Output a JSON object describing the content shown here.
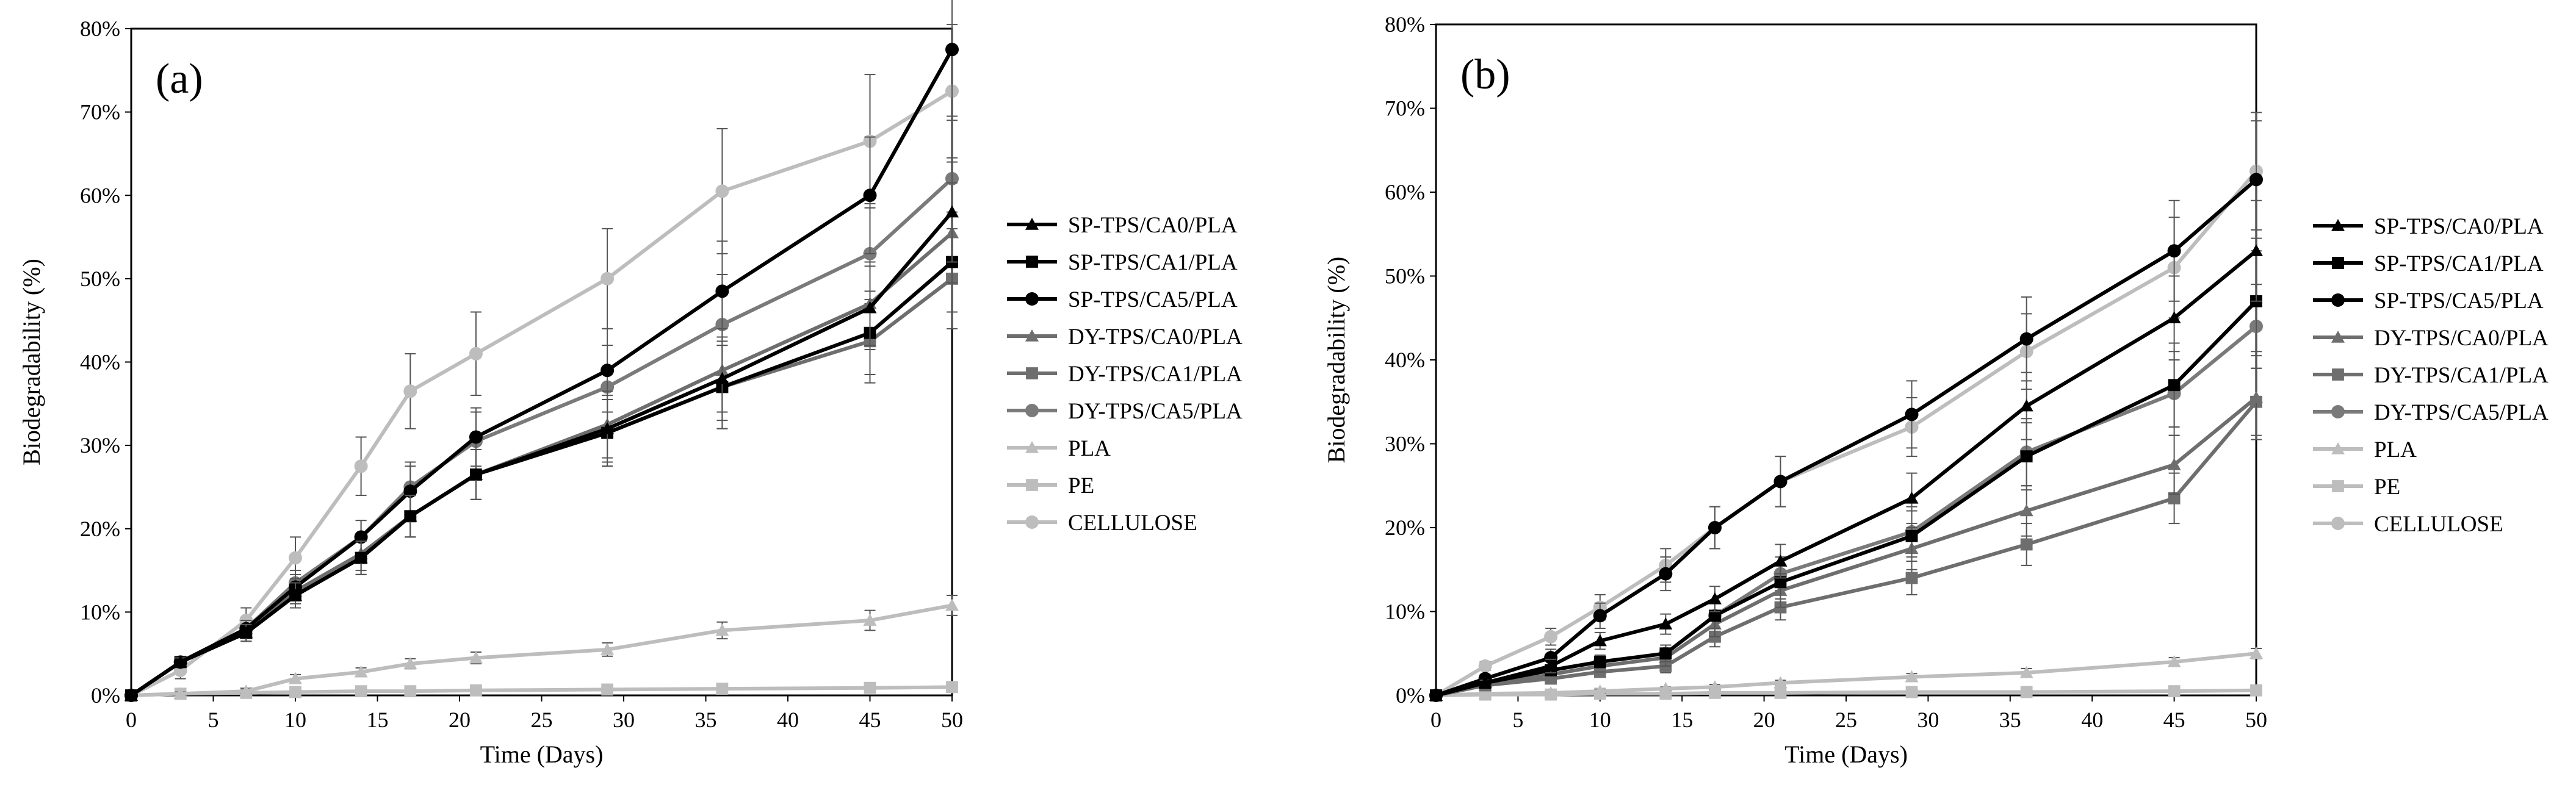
{
  "chart_data": [
    {
      "type": "line",
      "panel_label": "(a)",
      "xlabel": "Time (Days)",
      "ylabel": "Biodegradability (%)",
      "xlim": [
        0,
        50
      ],
      "ylim": [
        0,
        80
      ],
      "x_ticks": [
        "0",
        "5",
        "10",
        "15",
        "20",
        "25",
        "30",
        "35",
        "40",
        "45",
        "50"
      ],
      "y_ticks": [
        "0%",
        "10%",
        "20%",
        "30%",
        "40%",
        "50%",
        "60%",
        "70%",
        "80%"
      ],
      "grid": false,
      "legend_position": "right",
      "series": [
        {
          "name": "SP-TPS/CA0/PLA",
          "color": "#000000",
          "marker": "triangle",
          "x": [
            0,
            3,
            7,
            10,
            14,
            17,
            21,
            29,
            36,
            45,
            50
          ],
          "values": [
            0,
            4,
            7.5,
            12,
            16.5,
            21.5,
            26.5,
            32,
            38,
            46.5,
            58
          ],
          "errors": [
            0,
            0.5,
            1,
            1.5,
            2,
            2.5,
            3,
            4,
            5,
            5,
            6
          ]
        },
        {
          "name": "SP-TPS/CA1/PLA",
          "color": "#000000",
          "marker": "square",
          "x": [
            0,
            3,
            7,
            10,
            14,
            17,
            21,
            29,
            36,
            45,
            50
          ],
          "values": [
            0,
            4,
            7.5,
            12,
            16.5,
            21.5,
            26.5,
            31.5,
            37,
            43.5,
            52
          ],
          "errors": [
            0,
            0.5,
            1,
            1.5,
            2,
            2.5,
            3,
            4,
            5,
            5,
            6
          ]
        },
        {
          "name": "SP-TPS/CA5/PLA",
          "color": "#000000",
          "marker": "circle",
          "x": [
            0,
            3,
            7,
            10,
            14,
            17,
            21,
            29,
            36,
            45,
            50
          ],
          "values": [
            0,
            4,
            8,
            13,
            19,
            24.5,
            31,
            39,
            48.5,
            60,
            77.5
          ],
          "errors": [
            0,
            0.5,
            1,
            1.5,
            2,
            3,
            3.5,
            5,
            6,
            7,
            8
          ]
        },
        {
          "name": "DY-TPS/CA0/PLA",
          "color": "#6e6e6e",
          "marker": "triangle",
          "x": [
            0,
            3,
            7,
            10,
            14,
            17,
            21,
            29,
            36,
            45,
            50
          ],
          "values": [
            0,
            4,
            8,
            12.5,
            17,
            21.5,
            26.5,
            32.5,
            39,
            47,
            55.5
          ],
          "errors": [
            0,
            0.5,
            1,
            1.5,
            2,
            2.5,
            3,
            4,
            5,
            5,
            6
          ]
        },
        {
          "name": "DY-TPS/CA1/PLA",
          "color": "#6e6e6e",
          "marker": "square",
          "x": [
            0,
            3,
            7,
            10,
            14,
            17,
            21,
            29,
            36,
            45,
            50
          ],
          "values": [
            0,
            4,
            7.5,
            12,
            16.5,
            21.5,
            26.5,
            31.5,
            37,
            42.5,
            50
          ],
          "errors": [
            0,
            0.5,
            1,
            1.5,
            2,
            2.5,
            3,
            4,
            5,
            5,
            6
          ]
        },
        {
          "name": "DY-TPS/CA5/PLA",
          "color": "#7a7a7a",
          "marker": "circle",
          "x": [
            0,
            3,
            7,
            10,
            14,
            17,
            21,
            29,
            36,
            45,
            50
          ],
          "values": [
            0,
            4,
            8,
            13.5,
            19,
            25,
            30.5,
            37,
            44.5,
            53,
            62
          ],
          "errors": [
            0,
            0.5,
            1,
            1.5,
            2,
            3,
            3.5,
            5,
            6,
            6,
            7
          ]
        },
        {
          "name": "PLA",
          "color": "#bdbdbd",
          "marker": "triangle",
          "x": [
            0,
            3,
            7,
            10,
            14,
            17,
            21,
            29,
            36,
            45,
            50
          ],
          "values": [
            0,
            0.2,
            0.5,
            2,
            2.8,
            3.8,
            4.5,
            5.5,
            7.8,
            9,
            10.8
          ],
          "errors": [
            0,
            0.2,
            0.3,
            0.5,
            0.5,
            0.6,
            0.7,
            0.8,
            1,
            1.2,
            1.2
          ]
        },
        {
          "name": "PE",
          "color": "#bdbdbd",
          "marker": "square",
          "x": [
            0,
            3,
            7,
            10,
            14,
            17,
            21,
            29,
            36,
            45,
            50
          ],
          "values": [
            0,
            0.2,
            0.3,
            0.4,
            0.5,
            0.5,
            0.6,
            0.7,
            0.8,
            0.9,
            1
          ],
          "errors": [
            0,
            0.1,
            0.1,
            0.1,
            0.1,
            0.1,
            0.1,
            0.1,
            0.1,
            0.1,
            0.1
          ]
        },
        {
          "name": "CELLULOSE",
          "color": "#bdbdbd",
          "marker": "circle",
          "x": [
            0,
            3,
            7,
            10,
            14,
            17,
            21,
            29,
            36,
            45,
            50
          ],
          "values": [
            0,
            3,
            9,
            16.5,
            27.5,
            36.5,
            41,
            50,
            60.5,
            66.5,
            72.5
          ],
          "errors": [
            0,
            1,
            1.5,
            2.5,
            3.5,
            4.5,
            5,
            6,
            7.5,
            8,
            8
          ]
        }
      ]
    },
    {
      "type": "line",
      "panel_label": "(b)",
      "xlabel": "Time (Days)",
      "ylabel": "Biodegradability (%)",
      "xlim": [
        0,
        50
      ],
      "ylim": [
        0,
        80
      ],
      "x_ticks": [
        "0",
        "5",
        "10",
        "15",
        "20",
        "25",
        "30",
        "35",
        "40",
        "45",
        "50"
      ],
      "y_ticks": [
        "0%",
        "10%",
        "20%",
        "30%",
        "40%",
        "50%",
        "60%",
        "70%",
        "80%"
      ],
      "grid": false,
      "legend_position": "right",
      "series": [
        {
          "name": "SP-TPS/CA0/PLA",
          "color": "#000000",
          "marker": "triangle",
          "x": [
            0,
            3,
            7,
            10,
            14,
            17,
            21,
            29,
            36,
            45,
            50
          ],
          "values": [
            0,
            1.5,
            3.5,
            6.5,
            8.5,
            11.5,
            16,
            23.5,
            34.5,
            45,
            53
          ],
          "errors": [
            0,
            0.3,
            0.8,
            1,
            1.2,
            1.5,
            2,
            3,
            4,
            5,
            6
          ]
        },
        {
          "name": "SP-TPS/CA1/PLA",
          "color": "#000000",
          "marker": "square",
          "x": [
            0,
            3,
            7,
            10,
            14,
            17,
            21,
            29,
            36,
            45,
            50
          ],
          "values": [
            0,
            1.5,
            3,
            4,
            5,
            9.5,
            13.5,
            19,
            28.5,
            37,
            47
          ],
          "errors": [
            0,
            0.3,
            0.6,
            0.8,
            1,
            1.5,
            2,
            3,
            4,
            5,
            6
          ]
        },
        {
          "name": "SP-TPS/CA5/PLA",
          "color": "#000000",
          "marker": "circle",
          "x": [
            0,
            3,
            7,
            10,
            14,
            17,
            21,
            29,
            36,
            45,
            50
          ],
          "values": [
            0,
            2,
            4.5,
            9.5,
            14.5,
            20,
            25.5,
            33.5,
            42.5,
            53,
            61.5
          ],
          "errors": [
            0,
            0.5,
            1,
            1.5,
            2,
            2.5,
            3,
            4,
            5,
            6,
            7
          ]
        },
        {
          "name": "DY-TPS/CA0/PLA",
          "color": "#6e6e6e",
          "marker": "triangle",
          "x": [
            0,
            3,
            7,
            10,
            14,
            17,
            21,
            29,
            36,
            45,
            50
          ],
          "values": [
            0,
            1.2,
            2.5,
            3.5,
            4.5,
            8.5,
            12.5,
            17.5,
            22,
            27.5,
            35.5
          ],
          "errors": [
            0,
            0.3,
            0.5,
            0.7,
            1,
            1.5,
            2,
            2.5,
            3,
            3.5,
            5
          ]
        },
        {
          "name": "DY-TPS/CA1/PLA",
          "color": "#6e6e6e",
          "marker": "square",
          "x": [
            0,
            3,
            7,
            10,
            14,
            17,
            21,
            29,
            36,
            45,
            50
          ],
          "values": [
            0,
            1.2,
            2,
            2.8,
            3.5,
            7,
            10.5,
            14,
            18,
            23.5,
            35
          ],
          "errors": [
            0,
            0.3,
            0.5,
            0.6,
            0.8,
            1.2,
            1.5,
            2,
            2.5,
            3,
            4
          ]
        },
        {
          "name": "DY-TPS/CA5/PLA",
          "color": "#7a7a7a",
          "marker": "circle",
          "x": [
            0,
            3,
            7,
            10,
            14,
            17,
            21,
            29,
            36,
            45,
            50
          ],
          "values": [
            0,
            1.5,
            3,
            4,
            5,
            9.5,
            14.5,
            19.5,
            29,
            36,
            44
          ],
          "errors": [
            0,
            0.3,
            0.6,
            0.8,
            1,
            1.5,
            2,
            3,
            4,
            5,
            5
          ]
        },
        {
          "name": "PLA",
          "color": "#bdbdbd",
          "marker": "triangle",
          "x": [
            0,
            3,
            7,
            10,
            14,
            17,
            21,
            29,
            36,
            45,
            50
          ],
          "values": [
            0,
            0.2,
            0.3,
            0.5,
            0.8,
            1,
            1.5,
            2.2,
            2.7,
            4,
            5
          ],
          "errors": [
            0,
            0.1,
            0.1,
            0.2,
            0.2,
            0.3,
            0.3,
            0.4,
            0.5,
            0.5,
            0.6
          ]
        },
        {
          "name": "PE",
          "color": "#bdbdbd",
          "marker": "square",
          "x": [
            0,
            3,
            7,
            10,
            14,
            17,
            21,
            29,
            36,
            45,
            50
          ],
          "values": [
            0,
            0.1,
            0.1,
            0.2,
            0.2,
            0.3,
            0.3,
            0.4,
            0.4,
            0.5,
            0.6
          ],
          "errors": [
            0,
            0.1,
            0.1,
            0.1,
            0.1,
            0.1,
            0.1,
            0.1,
            0.1,
            0.1,
            0.1
          ]
        },
        {
          "name": "CELLULOSE",
          "color": "#bdbdbd",
          "marker": "circle",
          "x": [
            0,
            3,
            7,
            10,
            14,
            17,
            21,
            29,
            36,
            45,
            50
          ],
          "values": [
            0,
            3.5,
            7,
            10.5,
            15.5,
            20,
            25.5,
            32,
            41,
            51,
            62.5
          ],
          "errors": [
            0,
            0.5,
            1,
            1.5,
            2,
            2.5,
            3,
            3.5,
            4.5,
            6,
            7
          ]
        }
      ]
    }
  ]
}
